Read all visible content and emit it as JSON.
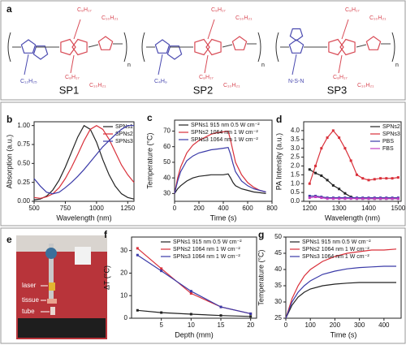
{
  "structures_panel": {
    "label": "a",
    "structures": [
      {
        "label": "SP1",
        "repeat": "n",
        "substituents": [
          "C₈H₁₇",
          "C₁₀H₂₁",
          "C₈H₁₇",
          "C₁₀H₂₁",
          "C₁₂H₂₅"
        ]
      },
      {
        "label": "SP2",
        "repeat": "n",
        "substituents": [
          "C₈H₁₇",
          "C₁₀H₂₁",
          "C₈H₁₇",
          "C₁₀H₂₁",
          "C₄H₉"
        ]
      },
      {
        "label": "SP3",
        "repeat": "n",
        "substituents": [
          "C₈H₁₇",
          "C₁₀H₂₁",
          "C₈H₁₇",
          "C₁₀H₂₁",
          "N-S-N"
        ]
      }
    ]
  },
  "photo_panel": {
    "label": "e",
    "labels": [
      "laser",
      "tissue",
      "tube"
    ]
  },
  "chart_data": [
    {
      "type": "line",
      "label": "b",
      "xlabel": "Wavelength (nm)",
      "ylabel": "Absorption (a.u.)",
      "xlim": [
        500,
        1300
      ],
      "xticks": [
        500,
        750,
        1000,
        1250
      ],
      "ylim": [
        0,
        1.05
      ],
      "yticks": [
        {
          "value": 0,
          "label": "0.00"
        },
        {
          "value": 0.25,
          "label": "0.25"
        },
        {
          "value": 0.5,
          "label": "0.50"
        },
        {
          "value": 0.75,
          "label": "0.75"
        },
        {
          "value": 1,
          "label": "1.00"
        }
      ],
      "legend": "upper-right",
      "markers": false,
      "x": [
        500,
        550,
        600,
        650,
        700,
        750,
        800,
        850,
        900,
        950,
        1000,
        1050,
        1100,
        1150,
        1200,
        1250,
        1300
      ],
      "series": [
        {
          "name": "SPNs1",
          "color": "#222222",
          "values": [
            0.02,
            0.03,
            0.07,
            0.15,
            0.28,
            0.45,
            0.65,
            0.85,
            1.0,
            0.95,
            0.78,
            0.55,
            0.35,
            0.2,
            0.1,
            0.05,
            0.03
          ]
        },
        {
          "name": "SPNs2",
          "color": "#d9303a",
          "values": [
            0.05,
            0.04,
            0.06,
            0.1,
            0.18,
            0.3,
            0.45,
            0.62,
            0.8,
            0.95,
            1.0,
            0.95,
            0.82,
            0.65,
            0.48,
            0.35,
            0.25
          ]
        },
        {
          "name": "SPNs3",
          "color": "#3a3aa8",
          "values": [
            0.3,
            0.2,
            0.12,
            0.1,
            0.12,
            0.18,
            0.25,
            0.33,
            0.42,
            0.52,
            0.62,
            0.72,
            0.8,
            0.88,
            0.95,
            1.0,
            1.0
          ]
        }
      ]
    },
    {
      "type": "line",
      "label": "c",
      "xlabel": "Time (s)",
      "ylabel": "Temperature (°C)",
      "xlim": [
        0,
        800
      ],
      "xticks": [
        0,
        200,
        400,
        600,
        800
      ],
      "ylim": [
        25,
        77
      ],
      "yticks": [
        30,
        40,
        50,
        60,
        70
      ],
      "legend": "upper-left",
      "markers": false,
      "x": [
        0,
        25,
        50,
        100,
        150,
        200,
        250,
        300,
        350,
        400,
        440,
        460,
        480,
        500,
        550,
        600,
        650,
        700,
        750
      ],
      "series": [
        {
          "name": "SPNs1 915 nm 0.5 W cm⁻²",
          "color": "#222222",
          "values": [
            30,
            33,
            35,
            38,
            40,
            41,
            41.5,
            42,
            42,
            42,
            42.5,
            40,
            37,
            35,
            33,
            32,
            31,
            30.5,
            30
          ]
        },
        {
          "name": "SPNs2 1064 nm 1 W cm⁻²",
          "color": "#d9303a",
          "values": [
            30,
            40,
            47,
            56,
            61,
            64,
            66,
            68,
            69,
            69.5,
            70,
            64,
            57,
            50,
            42,
            37,
            34,
            32,
            31
          ]
        },
        {
          "name": "SPNs3 1064 nm 1 W cm⁻²",
          "color": "#3a3aa8",
          "values": [
            30,
            38,
            44,
            51,
            54,
            56,
            57,
            58,
            58.5,
            59,
            59.5,
            55,
            49,
            44,
            38,
            35,
            33,
            32,
            31
          ]
        }
      ]
    },
    {
      "type": "line",
      "label": "d",
      "xlabel": "Wavelength (nm)",
      "ylabel": "PA Intensity (a.u.)",
      "xlim": [
        1180,
        1510
      ],
      "xticks": [
        1200,
        1300,
        1400,
        1500
      ],
      "ylim": [
        0,
        4.5
      ],
      "yticks": [
        {
          "value": 0,
          "label": "0.0"
        },
        {
          "value": 0.5,
          "label": "0.5"
        },
        {
          "value": 1,
          "label": "1.0"
        },
        {
          "value": 1.5,
          "label": "1.5"
        },
        {
          "value": 2,
          "label": "2.0"
        },
        {
          "value": 2.5,
          "label": "2.5"
        },
        {
          "value": 3,
          "label": "3.0"
        },
        {
          "value": 3.5,
          "label": "3.5"
        },
        {
          "value": 4,
          "label": "4.0"
        }
      ],
      "legend": "upper-right",
      "markers": true,
      "x": [
        1200,
        1220,
        1240,
        1260,
        1280,
        1300,
        1320,
        1340,
        1360,
        1380,
        1400,
        1420,
        1440,
        1460,
        1480,
        1500
      ],
      "series": [
        {
          "name": "SPNs2",
          "color": "#222222",
          "values": [
            1.8,
            1.6,
            1.45,
            1.2,
            0.9,
            0.7,
            0.45,
            0.25,
            0.15,
            0.15,
            0.15,
            0.15,
            0.15,
            0.15,
            0.15,
            0.15
          ]
        },
        {
          "name": "SPNs3",
          "color": "#d9303a",
          "values": [
            1.0,
            2.0,
            3.0,
            3.6,
            4.0,
            3.6,
            3.0,
            2.3,
            1.5,
            1.3,
            1.2,
            1.25,
            1.3,
            1.3,
            1.3,
            1.35
          ]
        },
        {
          "name": "PBS",
          "color": "#3a3aa8",
          "values": [
            0.3,
            0.3,
            0.25,
            0.2,
            0.2,
            0.2,
            0.2,
            0.2,
            0.2,
            0.2,
            0.2,
            0.2,
            0.2,
            0.2,
            0.2,
            0.2
          ]
        },
        {
          "name": "FBS",
          "color": "#c040c0",
          "values": [
            0.2,
            0.25,
            0.2,
            0.15,
            0.15,
            0.15,
            0.15,
            0.15,
            0.15,
            0.15,
            0.15,
            0.15,
            0.15,
            0.15,
            0.15,
            0.15
          ]
        }
      ]
    },
    {
      "type": "line",
      "label": "f",
      "xlabel": "Depth (mm)",
      "ylabel": "ΔT (°C)",
      "xlim": [
        0,
        21
      ],
      "xticks": [
        5,
        10,
        15,
        20
      ],
      "ylim": [
        0,
        36
      ],
      "yticks": [
        0,
        10,
        20,
        30
      ],
      "legend": "upper-right",
      "markers": true,
      "x": [
        1,
        5,
        10,
        15,
        20
      ],
      "series": [
        {
          "name": "SPNs1 915 nm 0.5 W cm⁻²",
          "color": "#222222",
          "values": [
            3.5,
            2.5,
            1.8,
            1.2,
            0.8
          ]
        },
        {
          "name": "SPNs2 1064 nm 1 W cm⁻²",
          "color": "#d9303a",
          "values": [
            31,
            22,
            11,
            5,
            2
          ]
        },
        {
          "name": "SPNs3 1064 nm 1 W cm⁻²",
          "color": "#3a3aa8",
          "values": [
            28,
            21,
            12,
            5,
            2
          ]
        }
      ]
    },
    {
      "type": "line",
      "label": "g",
      "xlabel": "Time (s)",
      "ylabel": "Temperature (°C)",
      "xlim": [
        0,
        470
      ],
      "xticks": [
        0,
        100,
        200,
        300,
        400
      ],
      "ylim": [
        25,
        50
      ],
      "yticks": [
        25,
        30,
        35,
        40,
        45,
        50
      ],
      "legend": "upper-left",
      "markers": false,
      "x": [
        0,
        25,
        50,
        75,
        100,
        150,
        200,
        250,
        300,
        350,
        400,
        450
      ],
      "series": [
        {
          "name": "SPNs1 915 nm 0.5 W cm⁻²",
          "color": "#222222",
          "values": [
            25,
            29,
            31.5,
            33,
            34,
            35,
            35.5,
            35.8,
            36,
            36,
            36,
            36
          ]
        },
        {
          "name": "SPNs2 1064 nm 1 W cm⁻²",
          "color": "#d9303a",
          "values": [
            25,
            31,
            35,
            38,
            40,
            42.5,
            44,
            45,
            45.5,
            46,
            46,
            46.3
          ]
        },
        {
          "name": "SPNs3 1064 nm 1 W cm⁻²",
          "color": "#3a3aa8",
          "values": [
            25,
            30,
            33,
            35,
            36.5,
            38.5,
            39.5,
            40.2,
            40.6,
            40.8,
            41,
            41
          ]
        }
      ]
    }
  ]
}
